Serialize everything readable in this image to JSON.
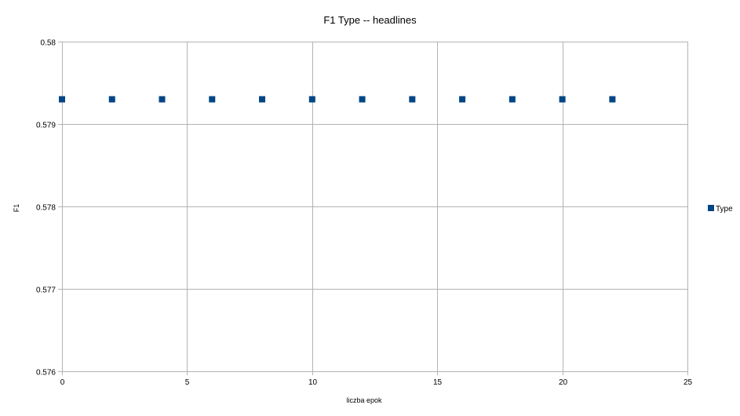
{
  "chart_data": {
    "type": "scatter",
    "title": "F1 Type -- headlines",
    "xlabel": "liczba epok",
    "ylabel": "F1",
    "xlim": [
      0,
      25
    ],
    "ylim": [
      0.576,
      0.58
    ],
    "x_ticks": [
      0,
      5,
      10,
      15,
      20,
      25
    ],
    "y_ticks": [
      0.576,
      0.577,
      0.578,
      0.579,
      0.58
    ],
    "x_tick_labels": [
      "0",
      "5",
      "10",
      "15",
      "20",
      "25"
    ],
    "y_tick_labels": [
      "0.576",
      "0.577",
      "0.578",
      "0.579",
      "0.58"
    ],
    "grid": true,
    "legend_position": "right",
    "series": [
      {
        "name": "Type",
        "color": "#004586",
        "marker": "square",
        "x": [
          0,
          2,
          4,
          6,
          8,
          10,
          12,
          14,
          16,
          18,
          20,
          22
        ],
        "y": [
          0.5793,
          0.5793,
          0.5793,
          0.5793,
          0.5793,
          0.5793,
          0.5793,
          0.5793,
          0.5793,
          0.5793,
          0.5793,
          0.5793
        ]
      }
    ]
  },
  "colors": {
    "grid": "#b3b3b3",
    "background": "#ffffff"
  }
}
